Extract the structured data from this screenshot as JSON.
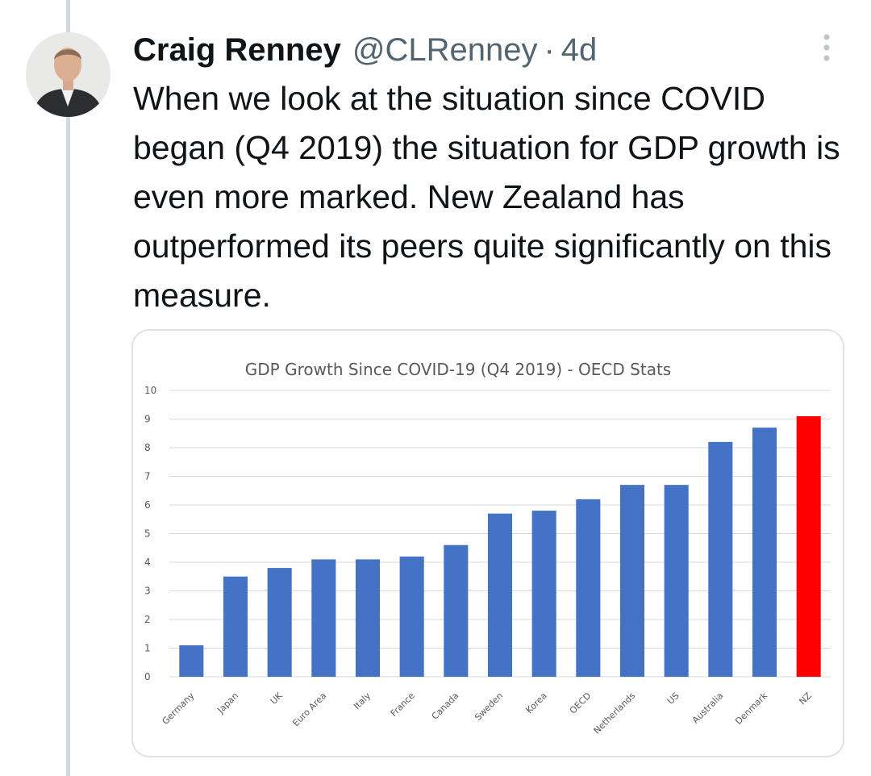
{
  "tweet": {
    "author_name": "Craig Renney",
    "handle": "@CLRenney",
    "separator": "·",
    "time": "4d",
    "text": "When we look at the situation since COVID began (Q4 2019) the situation for GDP growth is even more marked. New Zealand has outperformed its peers quite significantly on this measure."
  },
  "icons": {
    "more": "more-vertical-icon"
  },
  "colors": {
    "bar_default": "#4472c4",
    "bar_highlight": "#ff0000",
    "grid": "#d9d9d9",
    "secondary_text": "#536471"
  },
  "chart_data": {
    "type": "bar",
    "title": "GDP Growth Since COVID-19 (Q4 2019) - OECD Stats",
    "xlabel": "",
    "ylabel": "",
    "ylim": [
      0,
      10
    ],
    "yticks": [
      0,
      1,
      2,
      3,
      4,
      5,
      6,
      7,
      8,
      9,
      10
    ],
    "grid": true,
    "categories": [
      "Germany",
      "Japan",
      "UK",
      "Euro Area",
      "Italy",
      "France",
      "Canada",
      "Sweden",
      "Korea",
      "OECD",
      "Netherlands",
      "US",
      "Australia",
      "Denmark",
      "NZ"
    ],
    "values": [
      1.1,
      3.5,
      3.8,
      4.1,
      4.1,
      4.2,
      4.6,
      5.7,
      5.8,
      6.2,
      6.7,
      6.7,
      8.2,
      8.7,
      9.1
    ],
    "highlight": "NZ"
  }
}
